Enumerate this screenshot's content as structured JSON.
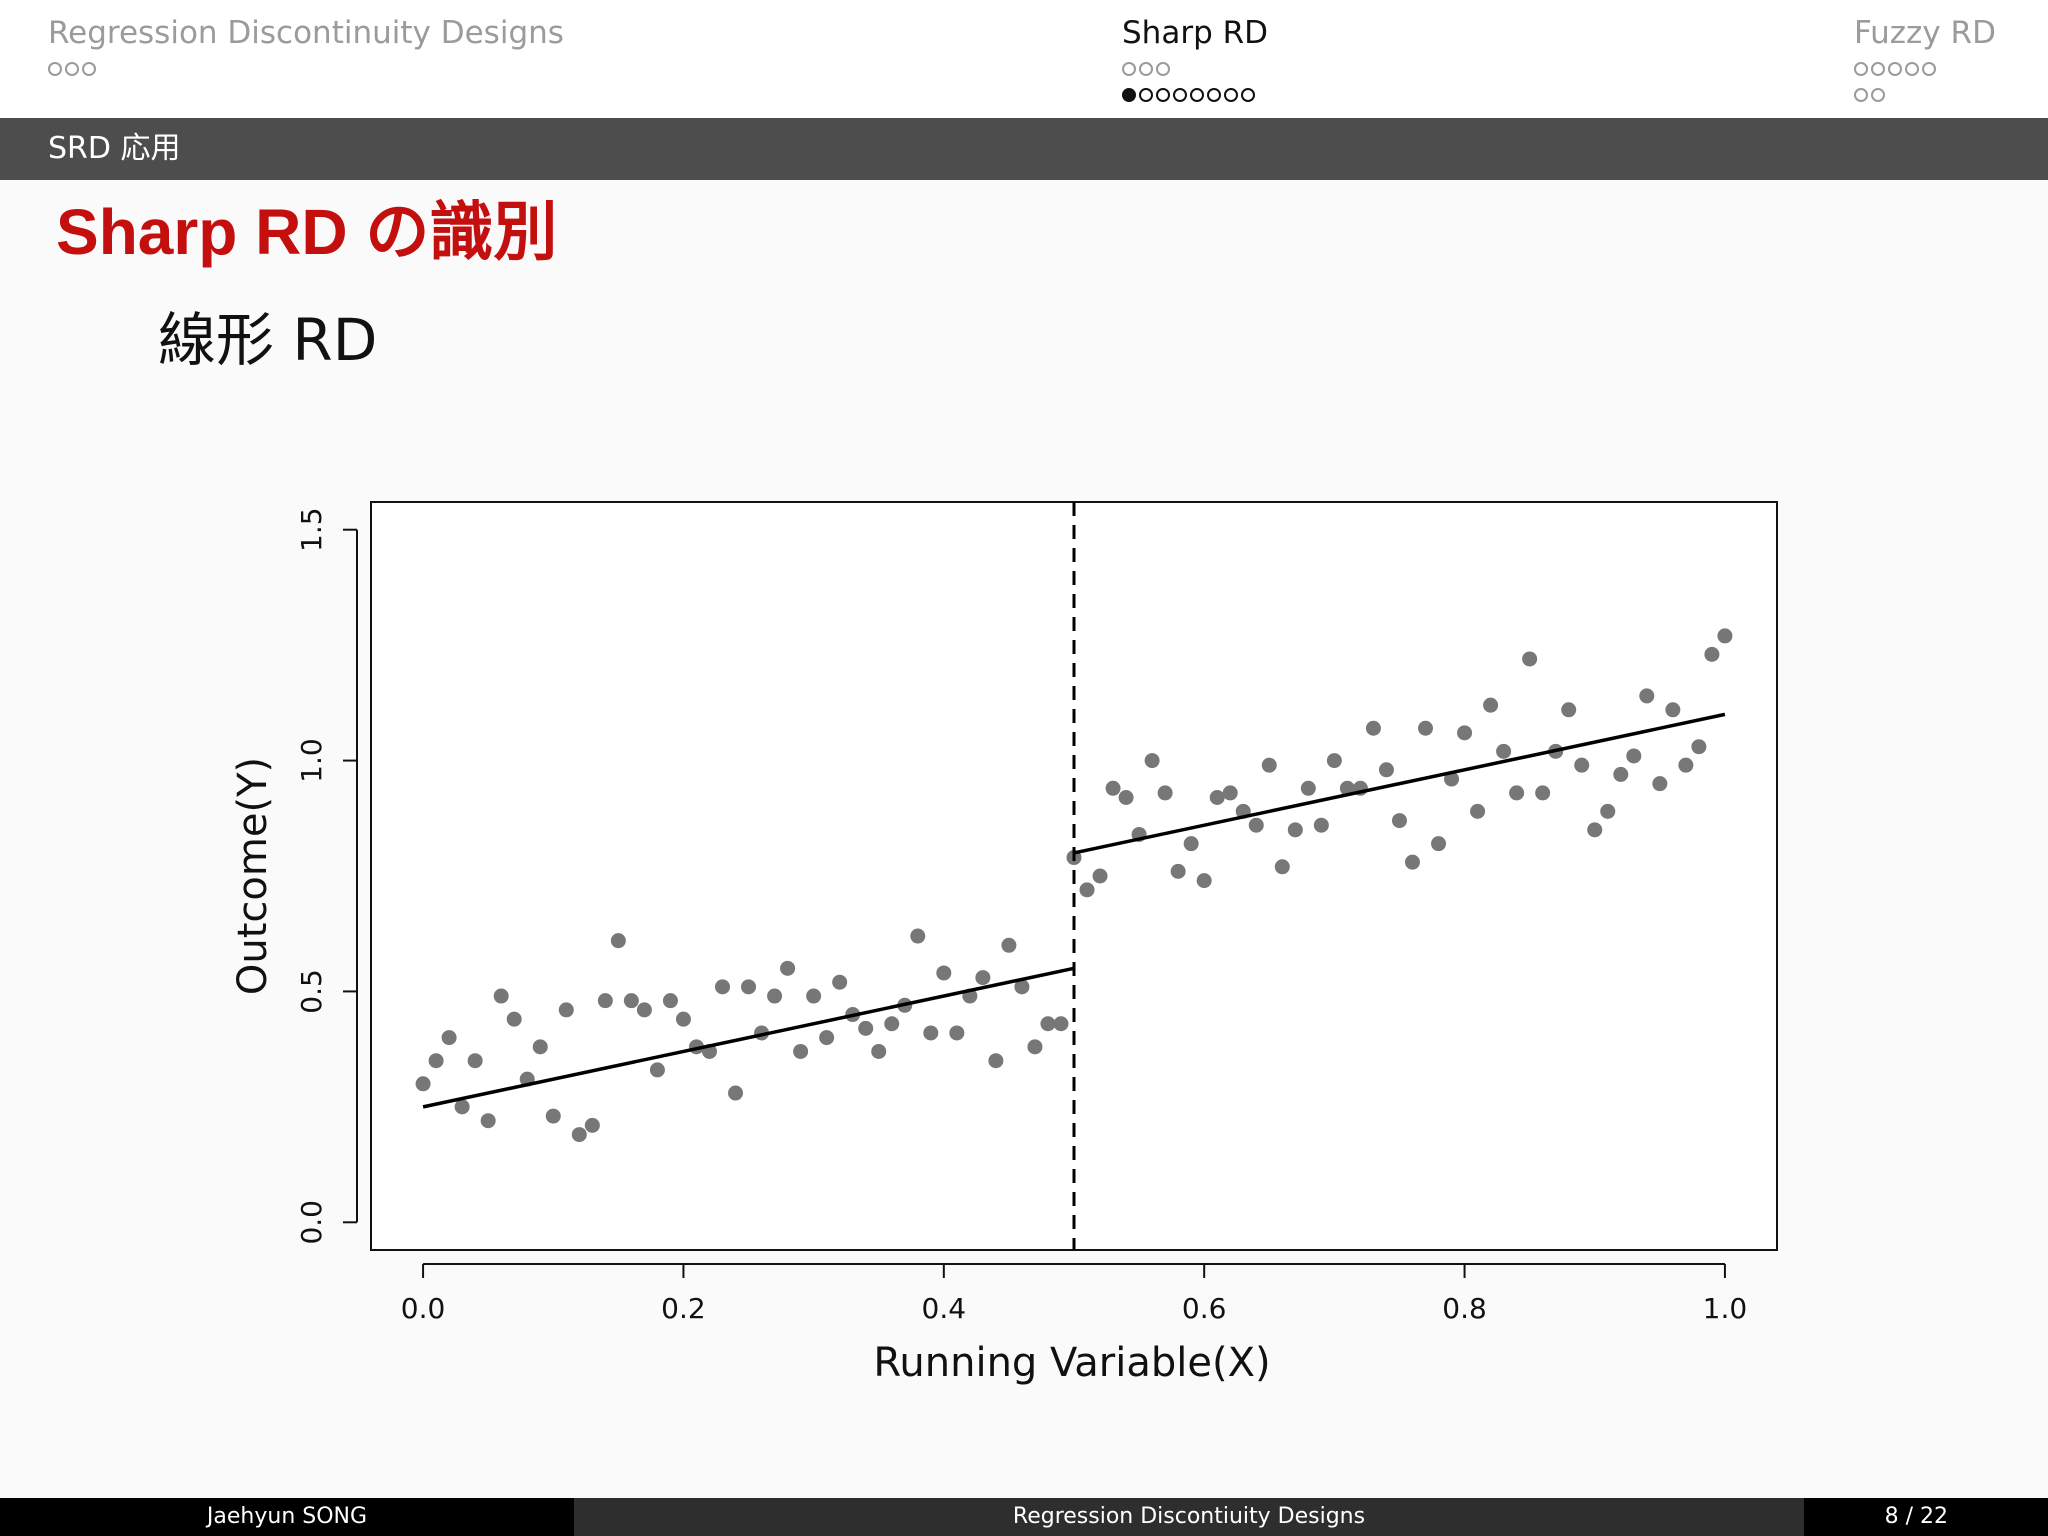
{
  "nav": {
    "sections": [
      {
        "title": "Regression Discontinuity Designs",
        "active": false,
        "rows": [
          3
        ]
      },
      {
        "title": "Sharp RD",
        "active": true,
        "rows": [
          3,
          8
        ],
        "filled_row": 1,
        "filled_index": 0
      },
      {
        "title": "Fuzzy RD",
        "active": false,
        "rows": [
          5,
          2
        ]
      }
    ]
  },
  "subsection": "SRD 応用",
  "frame_title": "Sharp RD の識別",
  "frame_subtitle": "線形 RD",
  "chart_data": {
    "type": "scatter",
    "xlabel": "Running Variable(X)",
    "ylabel": "Outcome(Y)",
    "xlim": [
      -0.04,
      1.04
    ],
    "ylim": [
      -0.06,
      1.56
    ],
    "xticks": [
      "0.0",
      "0.2",
      "0.4",
      "0.6",
      "0.8",
      "1.0"
    ],
    "yticks": [
      "0.0",
      "0.5",
      "1.0",
      "1.5"
    ],
    "cutoff": 0.5,
    "fit_lines": [
      {
        "from": [
          0.0,
          0.25
        ],
        "to": [
          0.5,
          0.55
        ]
      },
      {
        "from": [
          0.5,
          0.8
        ],
        "to": [
          1.0,
          1.1
        ]
      }
    ],
    "point_color": "#777777",
    "points": [
      [
        0.0,
        0.3
      ],
      [
        0.01,
        0.35
      ],
      [
        0.02,
        0.4
      ],
      [
        0.03,
        0.25
      ],
      [
        0.04,
        0.35
      ],
      [
        0.05,
        0.22
      ],
      [
        0.06,
        0.49
      ],
      [
        0.07,
        0.44
      ],
      [
        0.08,
        0.31
      ],
      [
        0.09,
        0.38
      ],
      [
        0.1,
        0.23
      ],
      [
        0.11,
        0.46
      ],
      [
        0.12,
        0.19
      ],
      [
        0.13,
        0.21
      ],
      [
        0.14,
        0.48
      ],
      [
        0.15,
        0.61
      ],
      [
        0.16,
        0.48
      ],
      [
        0.17,
        0.46
      ],
      [
        0.18,
        0.33
      ],
      [
        0.19,
        0.48
      ],
      [
        0.2,
        0.44
      ],
      [
        0.21,
        0.38
      ],
      [
        0.22,
        0.37
      ],
      [
        0.23,
        0.51
      ],
      [
        0.24,
        0.28
      ],
      [
        0.25,
        0.51
      ],
      [
        0.26,
        0.41
      ],
      [
        0.27,
        0.49
      ],
      [
        0.28,
        0.55
      ],
      [
        0.29,
        0.37
      ],
      [
        0.3,
        0.49
      ],
      [
        0.31,
        0.4
      ],
      [
        0.32,
        0.52
      ],
      [
        0.33,
        0.45
      ],
      [
        0.34,
        0.42
      ],
      [
        0.35,
        0.37
      ],
      [
        0.36,
        0.43
      ],
      [
        0.37,
        0.47
      ],
      [
        0.38,
        0.62
      ],
      [
        0.39,
        0.41
      ],
      [
        0.4,
        0.54
      ],
      [
        0.41,
        0.41
      ],
      [
        0.42,
        0.49
      ],
      [
        0.43,
        0.53
      ],
      [
        0.44,
        0.35
      ],
      [
        0.45,
        0.6
      ],
      [
        0.46,
        0.51
      ],
      [
        0.47,
        0.38
      ],
      [
        0.48,
        0.43
      ],
      [
        0.49,
        0.43
      ],
      [
        0.5,
        0.79
      ],
      [
        0.51,
        0.72
      ],
      [
        0.52,
        0.75
      ],
      [
        0.53,
        0.94
      ],
      [
        0.54,
        0.92
      ],
      [
        0.55,
        0.84
      ],
      [
        0.56,
        1.0
      ],
      [
        0.57,
        0.93
      ],
      [
        0.58,
        0.76
      ],
      [
        0.59,
        0.82
      ],
      [
        0.6,
        0.74
      ],
      [
        0.61,
        0.92
      ],
      [
        0.62,
        0.93
      ],
      [
        0.63,
        0.89
      ],
      [
        0.64,
        0.86
      ],
      [
        0.65,
        0.99
      ],
      [
        0.66,
        0.77
      ],
      [
        0.67,
        0.85
      ],
      [
        0.68,
        0.94
      ],
      [
        0.69,
        0.86
      ],
      [
        0.7,
        1.0
      ],
      [
        0.71,
        0.94
      ],
      [
        0.72,
        0.94
      ],
      [
        0.73,
        1.07
      ],
      [
        0.74,
        0.98
      ],
      [
        0.75,
        0.87
      ],
      [
        0.76,
        0.78
      ],
      [
        0.77,
        1.07
      ],
      [
        0.78,
        0.82
      ],
      [
        0.79,
        0.96
      ],
      [
        0.8,
        1.06
      ],
      [
        0.81,
        0.89
      ],
      [
        0.82,
        1.12
      ],
      [
        0.83,
        1.02
      ],
      [
        0.84,
        0.93
      ],
      [
        0.85,
        1.22
      ],
      [
        0.86,
        0.93
      ],
      [
        0.87,
        1.02
      ],
      [
        0.88,
        1.11
      ],
      [
        0.89,
        0.99
      ],
      [
        0.9,
        0.85
      ],
      [
        0.91,
        0.89
      ],
      [
        0.92,
        0.97
      ],
      [
        0.93,
        1.01
      ],
      [
        0.94,
        1.14
      ],
      [
        0.95,
        0.95
      ],
      [
        0.96,
        1.11
      ],
      [
        0.97,
        0.99
      ],
      [
        0.98,
        1.03
      ],
      [
        0.99,
        1.23
      ],
      [
        1.0,
        1.27
      ]
    ]
  },
  "footer": {
    "author": "Jaehyun SONG",
    "title": "Regression Discontiuity Designs",
    "page": "8 / 22"
  }
}
